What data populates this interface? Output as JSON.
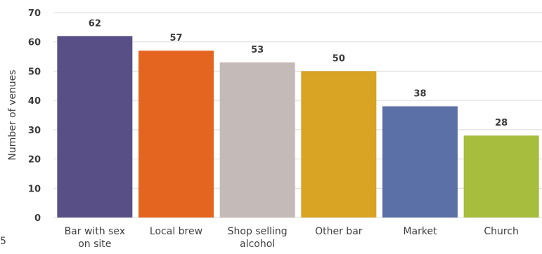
{
  "chart_data": {
    "type": "bar",
    "categories": [
      [
        "Bar with sex",
        "on site"
      ],
      [
        "Local brew"
      ],
      [
        "Shop selling",
        "alcohol"
      ],
      [
        "Other bar"
      ],
      [
        "Market"
      ],
      [
        "Church"
      ]
    ],
    "values": [
      62,
      57,
      53,
      50,
      38,
      28
    ],
    "colors": [
      "#574f85",
      "#e3651f",
      "#c4bab8",
      "#d9a323",
      "#5b70a6",
      "#a7bd3e"
    ],
    "ylabel": "Number of venues",
    "xlabel": "",
    "ylim": [
      0,
      70
    ],
    "yticks": [
      0,
      10,
      20,
      30,
      40,
      50,
      60,
      70
    ],
    "grid": true,
    "gridline_color": "#d9d9d9",
    "data_labels": true,
    "legend": "none"
  },
  "corner_mark": "5"
}
